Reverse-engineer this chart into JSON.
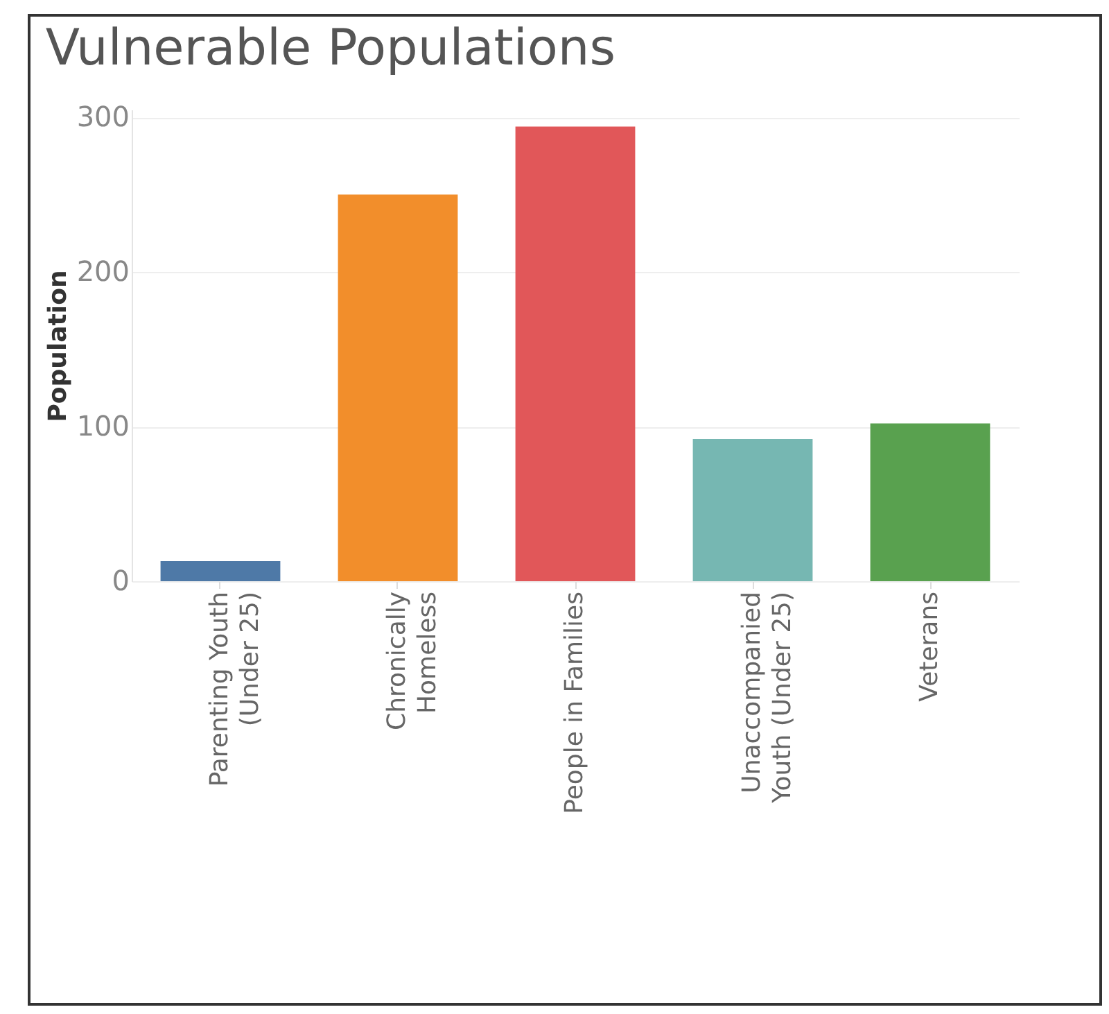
{
  "chart_data": {
    "type": "bar",
    "title": "Vulnerable Populations",
    "ylabel": "Population",
    "categories": [
      "Parenting Youth (Under 25)",
      "Chronically Homeless",
      "People in Families",
      "Unaccompanied Youth (Under 25)",
      "Veterans"
    ],
    "values": [
      13,
      250,
      294,
      92,
      102
    ],
    "colors": [
      "#4e79a7",
      "#f28e2b",
      "#e15759",
      "#76b7b2",
      "#59a14f"
    ],
    "ylim": [
      0,
      305
    ],
    "yticks": [
      0,
      100,
      200,
      300
    ],
    "grid": "y"
  }
}
